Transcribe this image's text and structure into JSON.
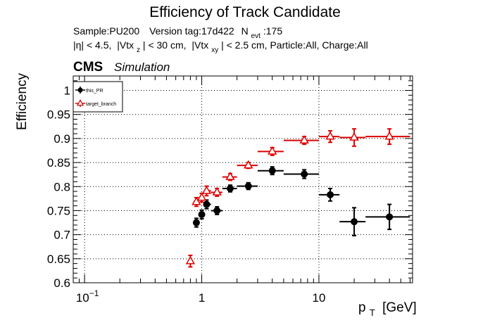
{
  "chart_data": {
    "type": "scatter",
    "title": "Efficiency of Track Candidate",
    "info_line1": {
      "sample": "Sample:PU200",
      "version": "Version tag:17d422",
      "nevt_label": "N",
      "nevt_sub": "evt",
      "nevt_value": ":175"
    },
    "info_line2": {
      "eta": "|η| < 4.5,",
      "vtxz_pre": "|Vtx",
      "vtxz_sub": "z",
      "vtxz_post": "| < 30 cm,",
      "vtxxy_pre": "|Vtx",
      "vtxxy_sub": "xy",
      "vtxxy_post": "| < 2.5 cm, Particle:All, Charge:All"
    },
    "cms_label": "CMS",
    "cms_sublabel": "Simulation",
    "xlabel_main": "p",
    "xlabel_sub": "T",
    "xlabel_unit": "[GeV]",
    "ylabel": "Efficiency",
    "xscale": "log",
    "xlim": [
      0.08,
      63
    ],
    "ylim": [
      0.6,
      1.03
    ],
    "grid": true,
    "legend_position": "top-left",
    "x_tick_labels": [
      {
        "value": 0.1,
        "base": "10",
        "exp": "−1"
      },
      {
        "value": 1,
        "base": "1",
        "exp": ""
      },
      {
        "value": 10,
        "base": "10",
        "exp": ""
      }
    ],
    "y_ticks": [
      0.6,
      0.65,
      0.7,
      0.75,
      0.8,
      0.85,
      0.9,
      0.95,
      1.0
    ],
    "y_tick_labels": [
      "0.6",
      "0.65",
      "0.7",
      "0.75",
      "0.8",
      "0.85",
      "0.9",
      "0.95",
      "1"
    ],
    "series": [
      {
        "name": "this_PR",
        "color": "#000000",
        "marker": "filled-circle",
        "points": [
          {
            "x": 0.9,
            "xlo": 0.85,
            "xhi": 0.95,
            "y": 0.725,
            "yerr": 0.009
          },
          {
            "x": 1.0,
            "xlo": 0.95,
            "xhi": 1.05,
            "y": 0.742,
            "yerr": 0.009
          },
          {
            "x": 1.1,
            "xlo": 1.05,
            "xhi": 1.2,
            "y": 0.763,
            "yerr": 0.009
          },
          {
            "x": 1.35,
            "xlo": 1.2,
            "xhi": 1.5,
            "y": 0.75,
            "yerr": 0.008
          },
          {
            "x": 1.75,
            "xlo": 1.5,
            "xhi": 2.0,
            "y": 0.796,
            "yerr": 0.007
          },
          {
            "x": 2.5,
            "xlo": 2.0,
            "xhi": 3.0,
            "y": 0.801,
            "yerr": 0.007
          },
          {
            "x": 4.0,
            "xlo": 3.0,
            "xhi": 5.0,
            "y": 0.833,
            "yerr": 0.008
          },
          {
            "x": 7.5,
            "xlo": 5.0,
            "xhi": 10.0,
            "y": 0.826,
            "yerr": 0.009
          },
          {
            "x": 12.5,
            "xlo": 10.0,
            "xhi": 15.0,
            "y": 0.783,
            "yerr": 0.013
          },
          {
            "x": 20.0,
            "xlo": 15.0,
            "xhi": 25.0,
            "y": 0.727,
            "yerr": 0.029
          },
          {
            "x": 40.0,
            "xlo": 25.0,
            "xhi": 60.0,
            "y": 0.737,
            "yerr": 0.026
          }
        ]
      },
      {
        "name": "target_branch",
        "color": "#dd0000",
        "marker": "open-triangle",
        "points": [
          {
            "x": 0.8,
            "xlo": 0.77,
            "xhi": 0.83,
            "y": 0.645,
            "yerr": 0.012
          },
          {
            "x": 0.9,
            "xlo": 0.85,
            "xhi": 0.95,
            "y": 0.768,
            "yerr": 0.009
          },
          {
            "x": 1.0,
            "xlo": 0.95,
            "xhi": 1.05,
            "y": 0.777,
            "yerr": 0.009
          },
          {
            "x": 1.1,
            "xlo": 1.05,
            "xhi": 1.2,
            "y": 0.791,
            "yerr": 0.01
          },
          {
            "x": 1.35,
            "xlo": 1.2,
            "xhi": 1.5,
            "y": 0.788,
            "yerr": 0.008
          },
          {
            "x": 1.75,
            "xlo": 1.5,
            "xhi": 2.0,
            "y": 0.82,
            "yerr": 0.007
          },
          {
            "x": 2.5,
            "xlo": 2.0,
            "xhi": 3.0,
            "y": 0.844,
            "yerr": 0.006
          },
          {
            "x": 4.0,
            "xlo": 3.0,
            "xhi": 5.0,
            "y": 0.873,
            "yerr": 0.008
          },
          {
            "x": 7.5,
            "xlo": 5.0,
            "xhi": 10.0,
            "y": 0.896,
            "yerr": 0.008
          },
          {
            "x": 12.5,
            "xlo": 10.0,
            "xhi": 15.0,
            "y": 0.904,
            "yerr": 0.012
          },
          {
            "x": 20.0,
            "xlo": 15.0,
            "xhi": 25.0,
            "y": 0.902,
            "yerr": 0.018
          },
          {
            "x": 40.0,
            "xlo": 25.0,
            "xhi": 60.0,
            "y": 0.904,
            "yerr": 0.016
          }
        ]
      }
    ]
  }
}
